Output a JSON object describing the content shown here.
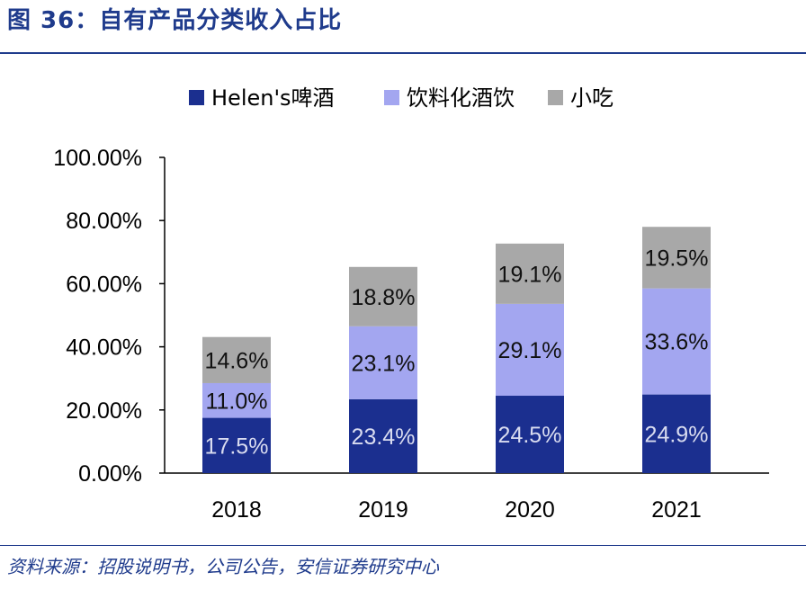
{
  "figure": {
    "title": "图 36：自有产品分类收入占比",
    "source": "资料来源：招股说明书，公司公告，安信证券研究中心"
  },
  "chart_data": {
    "type": "bar",
    "stacked": true,
    "title": "",
    "xlabel": "",
    "ylabel": "",
    "categories": [
      "2018",
      "2019",
      "2020",
      "2021"
    ],
    "ylim": [
      0,
      100
    ],
    "ytick_labels": [
      "0.00%",
      "20.00%",
      "40.00%",
      "60.00%",
      "80.00%",
      "100.00%"
    ],
    "legend_position": "top",
    "grid": false,
    "series": [
      {
        "name": "Helen's啤酒",
        "values": [
          17.5,
          23.4,
          24.5,
          24.9
        ],
        "labels": [
          "17.5%",
          "23.4%",
          "24.5%",
          "24.9%"
        ],
        "color": "#1b2f8f",
        "label_color": "#d9dcf0"
      },
      {
        "name": "饮料化酒饮",
        "values": [
          11.0,
          23.1,
          29.1,
          33.6
        ],
        "labels": [
          "11.0%",
          "23.1%",
          "29.1%",
          "33.6%"
        ],
        "color": "#a3a6f0",
        "label_color": "#111111"
      },
      {
        "name": "小吃",
        "values": [
          14.6,
          18.8,
          19.1,
          19.5
        ],
        "labels": [
          "14.6%",
          "18.8%",
          "19.1%",
          "19.5%"
        ],
        "color": "#a8a8a8",
        "label_color": "#111111"
      }
    ]
  }
}
